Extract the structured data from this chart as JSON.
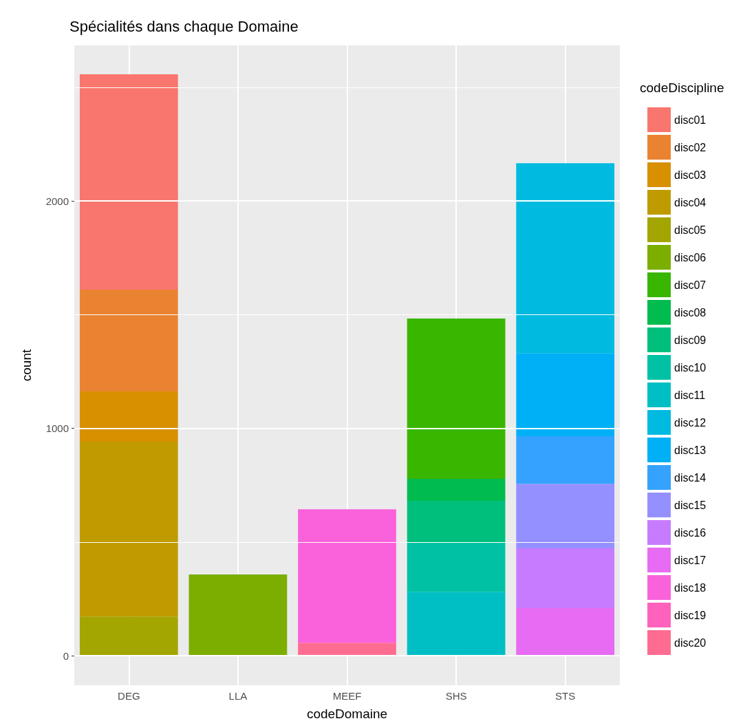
{
  "chart_data": {
    "type": "bar",
    "title": "Spécialités dans chaque Domaine",
    "xlabel": "codeDomaine",
    "ylabel": "count",
    "legend_title": "codeDiscipline",
    "stacked": true,
    "grid": true,
    "legend": "right",
    "categories": [
      "DEG",
      "LLA",
      "MEEF",
      "SHS",
      "STS"
    ],
    "ylim": [
      -130,
      2684
    ],
    "yticks": [
      0,
      {
        "value": 500,
        "label": null
      },
      1000,
      {
        "value": 1500,
        "label": null
      },
      2000,
      {
        "value": 2500,
        "label": null
      }
    ],
    "series": [
      {
        "name": "disc20",
        "color": "#ff6c91",
        "values": [
          null,
          null,
          57,
          null,
          null
        ]
      },
      {
        "name": "disc19",
        "color": "#ff62bc",
        "values": [
          null,
          null,
          null,
          null,
          null
        ]
      },
      {
        "name": "disc18",
        "color": "#fa62db",
        "values": [
          null,
          null,
          587,
          null,
          null
        ]
      },
      {
        "name": "disc17",
        "color": "#e76bf3",
        "values": [
          null,
          null,
          null,
          null,
          209
        ]
      },
      {
        "name": "disc16",
        "color": "#c77cff",
        "values": [
          null,
          null,
          null,
          null,
          263
        ]
      },
      {
        "name": "disc15",
        "color": "#9590ff",
        "values": [
          null,
          null,
          null,
          null,
          284
        ]
      },
      {
        "name": "disc14",
        "color": "#35a2ff",
        "values": [
          null,
          null,
          null,
          null,
          209
        ]
      },
      {
        "name": "disc13",
        "color": "#00b0f6",
        "values": [
          null,
          null,
          null,
          null,
          366
        ]
      },
      {
        "name": "disc12",
        "color": "#00bae0",
        "values": [
          null,
          null,
          null,
          null,
          835
        ]
      },
      {
        "name": "disc11",
        "color": "#00bfc4",
        "values": [
          null,
          null,
          null,
          281,
          null
        ]
      },
      {
        "name": "disc10",
        "color": "#00c1a3",
        "values": [
          null,
          null,
          null,
          215,
          null
        ]
      },
      {
        "name": "disc09",
        "color": "#00bf7d",
        "values": [
          null,
          null,
          null,
          185,
          null
        ]
      },
      {
        "name": "disc08",
        "color": "#00bb4e",
        "values": [
          null,
          null,
          null,
          97,
          null
        ]
      },
      {
        "name": "disc07",
        "color": "#39b600",
        "values": [
          null,
          null,
          null,
          705,
          null
        ]
      },
      {
        "name": "disc06",
        "color": "#7cae00",
        "values": [
          null,
          357,
          null,
          null,
          null
        ]
      },
      {
        "name": "disc05",
        "color": "#a3a500",
        "values": [
          172,
          null,
          null,
          null,
          null
        ]
      },
      {
        "name": "disc04",
        "color": "#c09b00",
        "values": [
          769,
          null,
          null,
          null,
          null
        ]
      },
      {
        "name": "disc03",
        "color": "#d89000",
        "values": [
          221,
          null,
          null,
          null,
          null
        ]
      },
      {
        "name": "disc02",
        "color": "#ea8331",
        "values": [
          448,
          null,
          null,
          null,
          null
        ]
      },
      {
        "name": "disc01",
        "color": "#f8766d",
        "values": [
          947,
          null,
          null,
          null,
          null
        ]
      }
    ]
  }
}
